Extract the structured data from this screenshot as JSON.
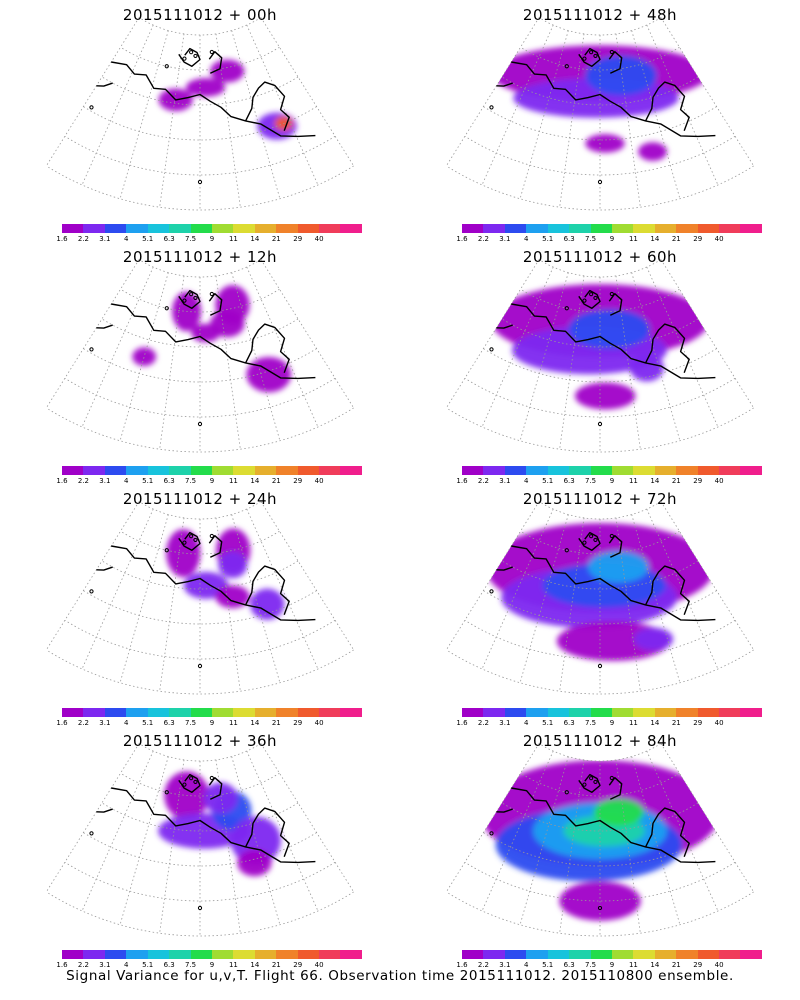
{
  "panels": [
    {
      "title": "2015111012 + 00h",
      "intensity": 0
    },
    {
      "title": "2015111012 + 48h",
      "intensity": 4
    },
    {
      "title": "2015111012 + 12h",
      "intensity": 1
    },
    {
      "title": "2015111012 + 60h",
      "intensity": 5
    },
    {
      "title": "2015111012 + 24h",
      "intensity": 2
    },
    {
      "title": "2015111012 + 72h",
      "intensity": 6
    },
    {
      "title": "2015111012 + 36h",
      "intensity": 3
    },
    {
      "title": "2015111012 + 84h",
      "intensity": 7
    }
  ],
  "colorbar": {
    "labels": [
      "1.6",
      "2.2",
      "3.1",
      "4",
      "5.1",
      "6.3",
      "7.5",
      "9",
      "11",
      "14",
      "21",
      "29",
      "40"
    ],
    "colors": [
      "#a000c8",
      "#7d28f0",
      "#2d4bf0",
      "#1ea0f0",
      "#18c3dc",
      "#1ed2aa",
      "#23dc4b",
      "#a0dc32",
      "#dcdc32",
      "#e6af2d",
      "#f0822a",
      "#f05a2d",
      "#f03c5a",
      "#f01e8c"
    ]
  },
  "footer": "Signal Variance for u,v,T. Flight 66. Observation time 2015111012. 2015110800 ensemble."
}
